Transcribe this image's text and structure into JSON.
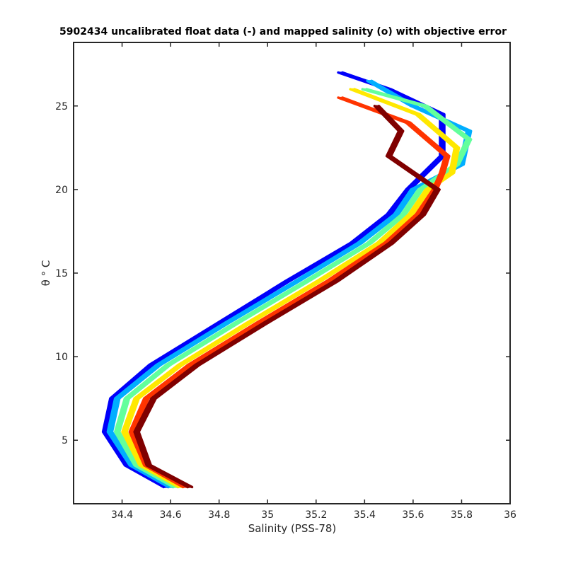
{
  "chart_data": {
    "type": "line",
    "title": "5902434 uncalibrated float data (-) and mapped salinity (o) with objective error",
    "xlabel": "Salinity (PSS-78)",
    "ylabel": "θ ° C",
    "xlim": [
      34.2,
      36.0
    ],
    "ylim": [
      1.2,
      28.8
    ],
    "xticks": [
      34.4,
      34.6,
      34.8,
      35,
      35.2,
      35.4,
      35.6,
      35.8,
      36
    ],
    "xtick_labels": [
      "34.4",
      "34.6",
      "34.8",
      "35",
      "35.2",
      "35.4",
      "35.6",
      "35.8",
      "36"
    ],
    "yticks": [
      5,
      10,
      15,
      20,
      25
    ],
    "ytick_labels": [
      "5",
      "10",
      "15",
      "20",
      "25"
    ],
    "grid": false,
    "legend": "none",
    "colormap": "jet",
    "series_color_range": [
      "#0000ff",
      "#800000"
    ],
    "series": [
      {
        "salinity": [
          34.58,
          34.42,
          34.33,
          34.36,
          34.52,
          34.8,
          35.08,
          35.35,
          35.5,
          35.58,
          35.72,
          35.72,
          35.5,
          35.3
        ],
        "theta": [
          2.2,
          3.5,
          5.5,
          7.5,
          9.5,
          12.0,
          14.5,
          16.8,
          18.5,
          20.0,
          22.0,
          24.5,
          26.0,
          27.0
        ]
      },
      {
        "salinity": [
          34.6,
          34.44,
          34.35,
          34.38,
          34.55,
          34.83,
          35.12,
          35.38,
          35.53,
          35.6,
          35.8,
          35.83,
          35.6,
          35.42
        ],
        "theta": [
          2.2,
          3.5,
          5.5,
          7.5,
          9.5,
          12.0,
          14.5,
          16.8,
          18.5,
          20.0,
          21.5,
          23.5,
          25.0,
          26.5
        ]
      },
      {
        "salinity": [
          34.62,
          34.46,
          34.38,
          34.42,
          34.59,
          34.87,
          35.16,
          35.42,
          35.56,
          35.63,
          35.78,
          35.83,
          35.65,
          35.4
        ],
        "theta": [
          2.2,
          3.5,
          5.5,
          7.5,
          9.5,
          12.0,
          14.5,
          16.8,
          18.5,
          20.0,
          21.5,
          23.0,
          25.0,
          26.0
        ]
      },
      {
        "salinity": [
          34.64,
          34.48,
          34.41,
          34.46,
          34.64,
          34.92,
          35.21,
          35.46,
          35.59,
          35.66,
          35.76,
          35.78,
          35.62,
          35.35
        ],
        "theta": [
          2.2,
          3.5,
          5.5,
          7.5,
          9.5,
          12.0,
          14.5,
          16.8,
          18.5,
          20.0,
          21.0,
          22.5,
          24.5,
          26.0
        ]
      },
      {
        "salinity": [
          34.66,
          34.5,
          34.44,
          34.5,
          34.68,
          34.96,
          35.25,
          35.49,
          35.62,
          35.69,
          35.72,
          35.74,
          35.58,
          35.3
        ],
        "theta": [
          2.2,
          3.5,
          5.5,
          7.5,
          9.5,
          12.0,
          14.5,
          16.8,
          18.5,
          20.0,
          21.0,
          22.0,
          24.0,
          25.5
        ]
      },
      {
        "salinity": [
          34.68,
          34.51,
          34.46,
          34.53,
          34.71,
          34.99,
          35.28,
          35.51,
          35.64,
          35.7,
          35.6,
          35.5,
          35.55,
          35.45
        ],
        "theta": [
          2.2,
          3.5,
          5.5,
          7.5,
          9.5,
          12.0,
          14.5,
          16.8,
          18.5,
          20.0,
          21.0,
          22.0,
          23.5,
          25.0
        ]
      }
    ]
  }
}
